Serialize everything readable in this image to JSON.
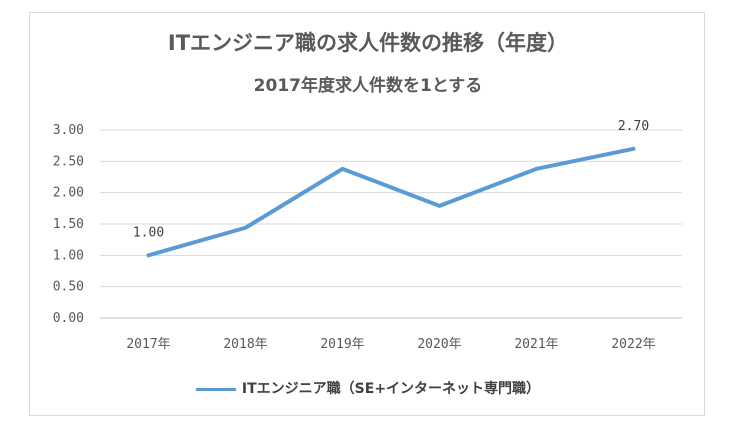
{
  "chart_data": {
    "type": "line",
    "title": "ITエンジニア職の求人件数の推移（年度）",
    "subtitle": "2017年度求人件数を1とする",
    "categories": [
      "2017年",
      "2018年",
      "2019年",
      "2020年",
      "2021年",
      "2022年"
    ],
    "series": [
      {
        "name": "ITエンジニア職（SE+インターネット専門職）",
        "values": [
          1.0,
          1.44,
          2.38,
          1.79,
          2.38,
          2.7
        ],
        "color": "#5b9bd5"
      }
    ],
    "data_labels": [
      {
        "index": 0,
        "text": "1.00"
      },
      {
        "index": 5,
        "text": "2.70"
      }
    ],
    "y_ticks": [
      "0.00",
      "0.50",
      "1.00",
      "1.50",
      "2.00",
      "2.50",
      "3.00"
    ],
    "ylim": [
      0,
      3
    ],
    "grid": true,
    "legend_position": "bottom"
  }
}
